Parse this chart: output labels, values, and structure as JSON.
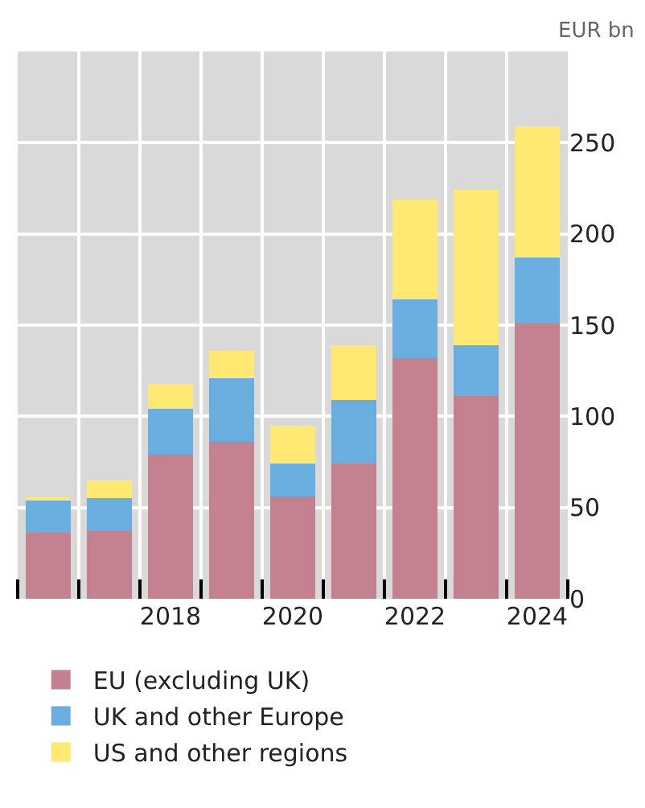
{
  "chart_data": {
    "type": "bar",
    "stacked": true,
    "ylabel": "EUR bn",
    "categories": [
      null,
      null,
      "2018",
      null,
      "2020",
      null,
      "2022",
      null,
      "2024"
    ],
    "series": [
      {
        "name": "EU (excluding UK)",
        "color": "#c3808f",
        "values": [
          36,
          37,
          79,
          86,
          56,
          74,
          132,
          111,
          151
        ]
      },
      {
        "name": "UK and other Europe",
        "color": "#6aaee0",
        "values": [
          18,
          18,
          25,
          35,
          18,
          35,
          32,
          28,
          36
        ]
      },
      {
        "name": "US and other regions",
        "color": "#ffe972",
        "values": [
          1,
          10,
          14,
          15,
          21,
          30,
          55,
          85,
          72
        ]
      }
    ],
    "ylim": [
      0,
      300
    ],
    "yticks": [
      0,
      50,
      100,
      150,
      200,
      250
    ],
    "grid": true,
    "legend": "bottom"
  }
}
